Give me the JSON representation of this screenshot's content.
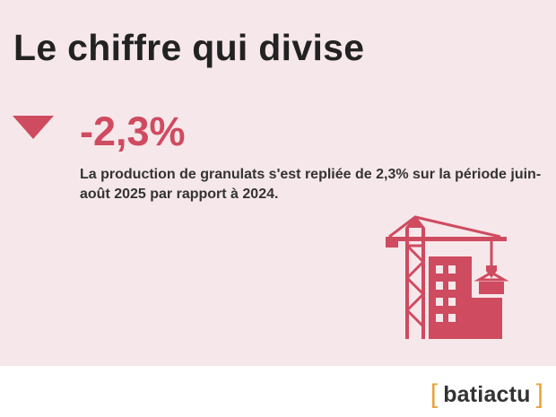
{
  "title": "Le chiffre qui divise",
  "stat": {
    "value": "-2,3%",
    "direction": "down",
    "description": "La production de granulats s'est repliée de 2,3% sur la période juin-août 2025 par rapport à 2024."
  },
  "illustration": {
    "icon": "construction-crane-building-icon"
  },
  "brand": {
    "open_bracket": "[",
    "name": "batiactu",
    "close_bracket": "]"
  },
  "colors": {
    "background": "#f6e7ea",
    "accent": "#cf4b60",
    "text": "#222222",
    "bracket": "#e8a33c"
  }
}
